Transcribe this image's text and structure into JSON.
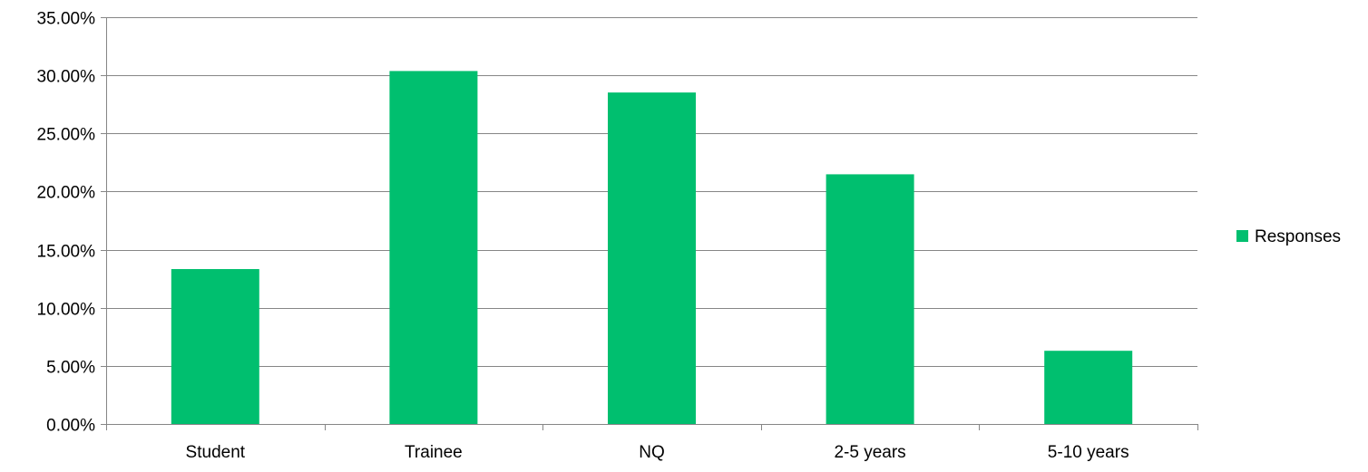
{
  "chart_data": {
    "type": "bar",
    "title": "",
    "xlabel": "",
    "ylabel": "",
    "categories": [
      "Student",
      "Trainee",
      "NQ",
      "2-5 years",
      "5-10 years"
    ],
    "series": [
      {
        "name": "Responses",
        "color": "#00BF6F",
        "values": [
          0.1333,
          0.3037,
          0.2852,
          0.2148,
          0.063
        ]
      }
    ],
    "ylim": [
      0,
      0.35
    ],
    "yticks": [
      0,
      0.05,
      0.1,
      0.15,
      0.2,
      0.25,
      0.3,
      0.35
    ],
    "ytick_labels": [
      "0.00%",
      "5.00%",
      "10.00%",
      "15.00%",
      "20.00%",
      "25.00%",
      "30.00%",
      "35.00%"
    ],
    "grid": true,
    "legend": {
      "position": "right",
      "entries": [
        "Responses"
      ]
    },
    "axis_color": "#868686",
    "grid_color": "#868686"
  }
}
